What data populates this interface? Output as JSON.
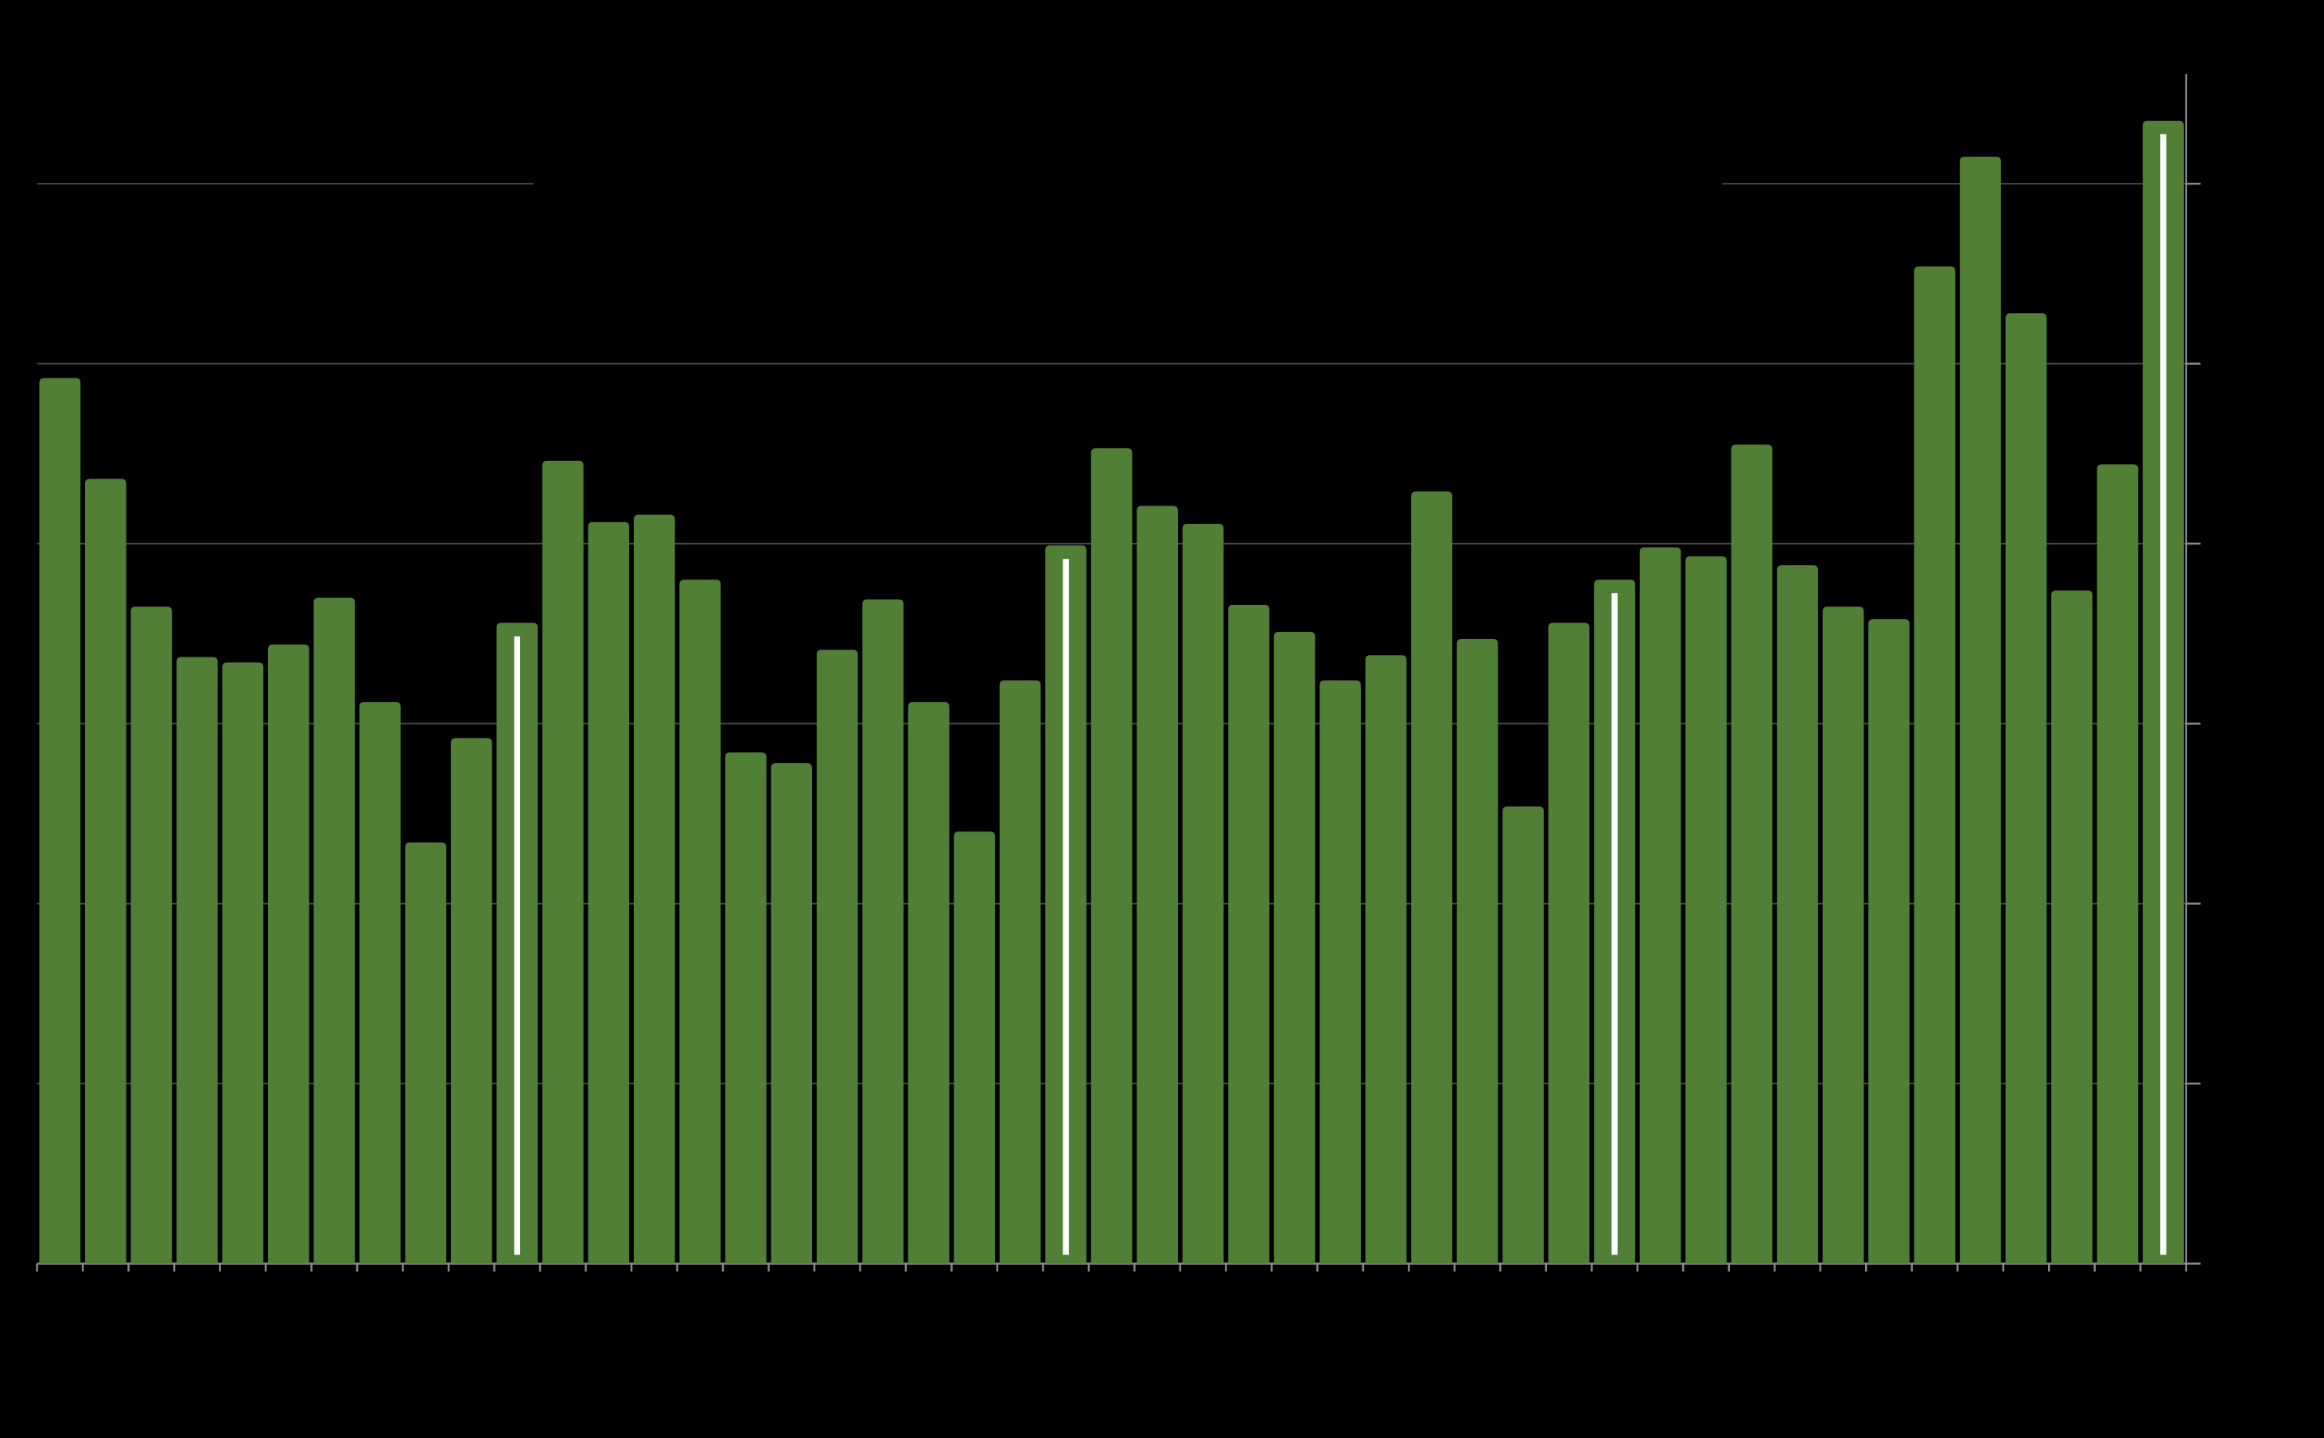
{
  "chart_data": {
    "type": "bar",
    "values": [
      4.92,
      4.36,
      3.65,
      3.37,
      3.34,
      3.44,
      3.7,
      3.12,
      2.34,
      2.92,
      3.56,
      4.46,
      4.12,
      4.16,
      3.8,
      2.84,
      2.78,
      3.41,
      3.69,
      3.12,
      2.4,
      3.24,
      3.99,
      4.53,
      4.21,
      4.11,
      3.66,
      3.51,
      3.24,
      3.38,
      4.29,
      3.47,
      2.54,
      3.56,
      3.8,
      3.98,
      3.93,
      4.55,
      3.88,
      3.65,
      3.58,
      5.54,
      6.15,
      5.28,
      3.74,
      4.44,
      6.35
    ],
    "color": "#507f35",
    "highlight_indices": [
      10,
      22,
      34,
      46
    ],
    "highlight_color": "#ffffff",
    "ylim": [
      0,
      6.61
    ],
    "yticks": [
      0,
      1,
      2,
      3,
      4,
      5,
      6
    ],
    "grid": true,
    "y_axis_side": "right"
  }
}
